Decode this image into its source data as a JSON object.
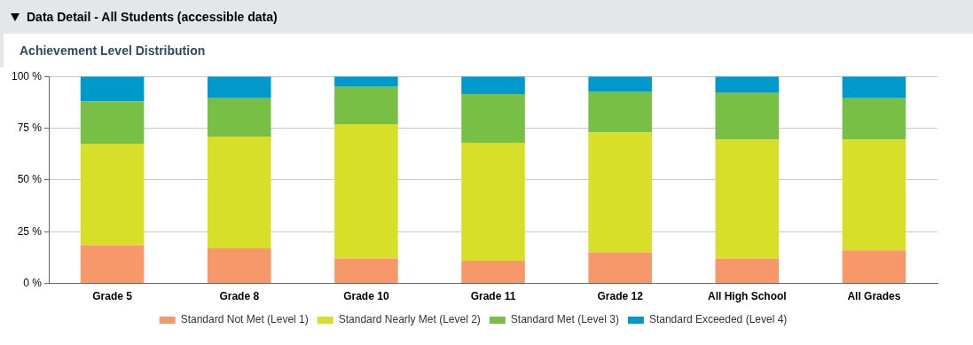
{
  "chart_data": {
    "type": "bar",
    "title": "Data Detail - All Students (accessible data)",
    "subtitle": "Achievement Level Distribution",
    "categories": [
      "Grade 5",
      "Grade 8",
      "Grade 10",
      "Grade 11",
      "Grade 12",
      "All High School",
      "All Grades"
    ],
    "stacked": true,
    "series": [
      {
        "name": "Standard Not Met (Level 1)",
        "color": "#f6986a",
        "values": [
          18.5,
          17,
          12,
          11,
          15,
          12,
          16
        ]
      },
      {
        "name": "Standard Nearly Met (Level 2)",
        "color": "#d7df28",
        "values": [
          49,
          54,
          65,
          57,
          58,
          57.5,
          53.5
        ]
      },
      {
        "name": "Standard Met (Level 3)",
        "color": "#77bf45",
        "values": [
          20.5,
          18.5,
          18,
          23.5,
          19.5,
          22.5,
          20
        ]
      },
      {
        "name": "Standard Exceeded (Level 4)",
        "color": "#0099cc",
        "values": [
          12,
          10.5,
          5,
          8.5,
          7.5,
          8,
          10.5
        ]
      }
    ],
    "ylim": [
      0,
      100
    ],
    "yticks": [
      {
        "value": 0,
        "label": "0 %"
      },
      {
        "value": 25,
        "label": "25 %"
      },
      {
        "value": 50,
        "label": "50 %"
      },
      {
        "value": 75,
        "label": "75 %"
      },
      {
        "value": 100,
        "label": "100 %"
      }
    ],
    "grid": "y",
    "legend": "bottom"
  }
}
